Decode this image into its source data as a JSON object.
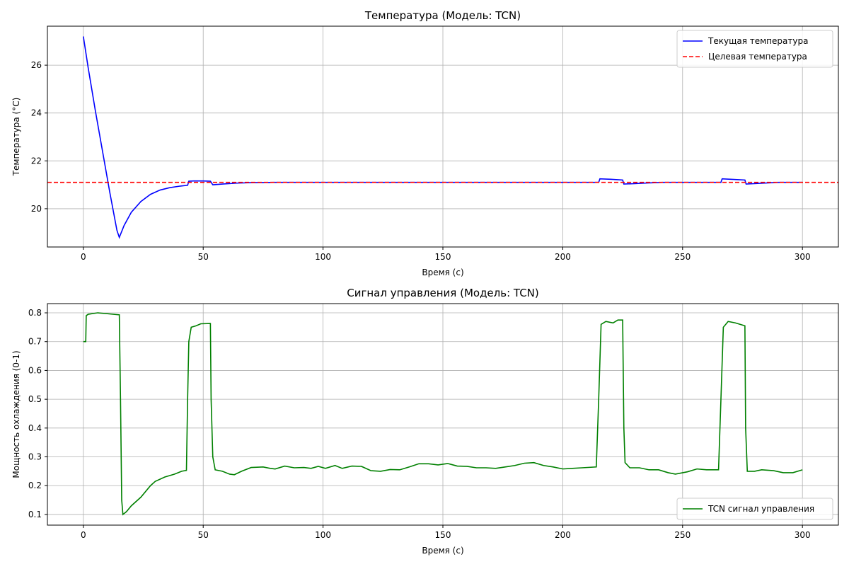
{
  "chart_data": [
    {
      "type": "line",
      "title": "Температура (Модель: TCN)",
      "x_label": "Время (с)",
      "y_label": "Температура (°C)",
      "xlim": [
        -15,
        315
      ],
      "ylim": [
        18.4,
        27.63
      ],
      "xticks": [
        0,
        50,
        100,
        150,
        200,
        250,
        300
      ],
      "yticks": [
        20,
        22,
        24,
        26
      ],
      "grid": true,
      "legend": "upper right",
      "series": [
        {
          "name": "Текущая температура",
          "color": "#0000ff",
          "linestyle": "solid",
          "x": [
            0,
            2,
            5,
            8,
            11,
            14,
            15,
            17,
            20,
            24,
            28,
            32,
            36,
            40,
            43.5,
            44,
            46,
            50,
            53,
            54,
            58,
            64,
            70,
            80,
            120,
            180,
            215,
            215.5,
            220,
            225,
            225.5,
            230,
            236,
            242,
            266,
            266.5,
            270,
            276,
            276.5,
            282,
            290,
            300
          ],
          "values": [
            27.2,
            25.9,
            24.1,
            22.4,
            20.7,
            19.1,
            18.8,
            19.3,
            19.85,
            20.3,
            20.6,
            20.78,
            20.88,
            20.94,
            20.98,
            21.15,
            21.16,
            21.16,
            21.15,
            21.0,
            21.03,
            21.07,
            21.09,
            21.1,
            21.1,
            21.1,
            21.1,
            21.25,
            21.23,
            21.2,
            21.03,
            21.05,
            21.08,
            21.1,
            21.1,
            21.25,
            21.23,
            21.2,
            21.03,
            21.06,
            21.1,
            21.1
          ]
        }
      ],
      "hlines": [
        {
          "name": "Целевая температура",
          "color": "#ff0000",
          "linestyle": "dashed",
          "value": 21.1
        }
      ]
    },
    {
      "type": "line",
      "title": "Сигнал управления (Модель: TCN)",
      "x_label": "Время (с)",
      "y_label": "Мощность охлаждения (0-1)",
      "xlim": [
        -15,
        315
      ],
      "ylim": [
        0.063,
        0.832
      ],
      "xticks": [
        0,
        50,
        100,
        150,
        200,
        250,
        300
      ],
      "yticks": [
        0.1,
        0.2,
        0.3,
        0.4,
        0.5,
        0.6,
        0.7,
        0.8
      ],
      "grid": true,
      "legend": "lower right",
      "series": [
        {
          "name": "TCN сигнал управления",
          "color": "#008000",
          "linestyle": "solid",
          "x": [
            0,
            1,
            1.2,
            2,
            6,
            10,
            15,
            15.5,
            16,
            16.5,
            18,
            20,
            24,
            28,
            30,
            34,
            38,
            41,
            43,
            43.5,
            44,
            45,
            47,
            49,
            53,
            53.3,
            54,
            55,
            58,
            61,
            63,
            66,
            70,
            75,
            78,
            80,
            84,
            88,
            92,
            95,
            98,
            101,
            105,
            108,
            112,
            116,
            120,
            124,
            128,
            132,
            136,
            140,
            144,
            148,
            152,
            156,
            160,
            164,
            168,
            172,
            176,
            180,
            184,
            188,
            192,
            196,
            200,
            204,
            208,
            214,
            215,
            216,
            218,
            221,
            223,
            225,
            225.5,
            226,
            228,
            232,
            236,
            240,
            244,
            247,
            252,
            256,
            260,
            265,
            266,
            267,
            269,
            272,
            276,
            276.3,
            277,
            280,
            283,
            288,
            292,
            296,
            300
          ],
          "values": [
            0.7,
            0.7,
            0.79,
            0.795,
            0.8,
            0.797,
            0.793,
            0.5,
            0.15,
            0.1,
            0.11,
            0.13,
            0.16,
            0.2,
            0.215,
            0.23,
            0.24,
            0.25,
            0.253,
            0.5,
            0.7,
            0.75,
            0.755,
            0.762,
            0.763,
            0.5,
            0.3,
            0.255,
            0.25,
            0.24,
            0.238,
            0.25,
            0.263,
            0.265,
            0.26,
            0.258,
            0.268,
            0.262,
            0.263,
            0.26,
            0.267,
            0.26,
            0.27,
            0.26,
            0.268,
            0.267,
            0.252,
            0.25,
            0.256,
            0.255,
            0.265,
            0.276,
            0.276,
            0.272,
            0.277,
            0.268,
            0.267,
            0.262,
            0.262,
            0.26,
            0.265,
            0.27,
            0.278,
            0.28,
            0.27,
            0.265,
            0.258,
            0.26,
            0.262,
            0.265,
            0.5,
            0.76,
            0.77,
            0.765,
            0.775,
            0.775,
            0.4,
            0.28,
            0.262,
            0.262,
            0.255,
            0.255,
            0.245,
            0.24,
            0.248,
            0.258,
            0.255,
            0.255,
            0.5,
            0.75,
            0.77,
            0.765,
            0.755,
            0.4,
            0.25,
            0.25,
            0.255,
            0.252,
            0.245,
            0.245,
            0.255
          ]
        }
      ]
    }
  ]
}
